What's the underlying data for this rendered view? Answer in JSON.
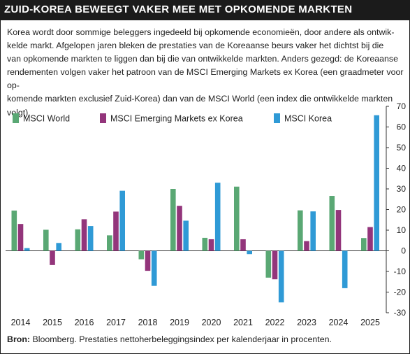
{
  "header": {
    "title": "ZUID-KOREA BEWEEGT VAKER MEE MET OPKOMENDE MARKTEN"
  },
  "intro": {
    "lines": [
      "Korea wordt door sommige beleggers ingedeeld bij opkomende economieën, door andere als ontwik-",
      "kelde markt. Afgelopen jaren bleken de prestaties van de Koreaanse beurs vaker het dichtst bij die",
      "van opkomende markten te liggen dan bij die van ontwikkelde markten. Anders gezegd: de Koreaanse",
      "rendementen volgen vaker het patroon van de MSCI Emerging Markets ex Korea (een graadmeter voor op-",
      "komende markten exclusief Zuid-Korea) dan van de MSCI World (een index die ontwikkelde markten volgt)."
    ]
  },
  "chart_data": {
    "type": "bar",
    "categories": [
      "2014",
      "2015",
      "2016",
      "2017",
      "2018",
      "2019",
      "2020",
      "2021",
      "2022",
      "2023",
      "2024",
      "2025"
    ],
    "series": [
      {
        "name": "MSCI World",
        "color": "#5aa874",
        "values": [
          19.5,
          10.2,
          10.4,
          7.5,
          -4.1,
          30.0,
          6.3,
          31.1,
          -13.0,
          19.6,
          26.6,
          6.2
        ]
      },
      {
        "name": "MSCI Emerging Markets ex Korea",
        "color": "#93357b",
        "values": [
          13.0,
          -6.9,
          15.3,
          19.0,
          -9.7,
          21.8,
          5.6,
          5.6,
          -13.8,
          4.7,
          19.8,
          11.5
        ]
      },
      {
        "name": "MSCI Korea",
        "color": "#2f9ad6",
        "values": [
          1.3,
          3.8,
          12.0,
          29.1,
          -17.0,
          14.6,
          33.0,
          -1.6,
          -25.0,
          19.1,
          -18.1,
          65.7
        ]
      }
    ],
    "ylim": [
      -30,
      70
    ],
    "yticks": [
      70,
      60,
      50,
      40,
      30,
      20,
      10,
      0,
      -10,
      -20,
      -30
    ],
    "grid": false,
    "legend": "top-left",
    "xlabel": "",
    "ylabel": ""
  },
  "footer": {
    "source_label": "Bron:",
    "source_text": "Bloomberg. Prestaties nettoherbeleggingsindex per kalenderjaar in procenten."
  }
}
